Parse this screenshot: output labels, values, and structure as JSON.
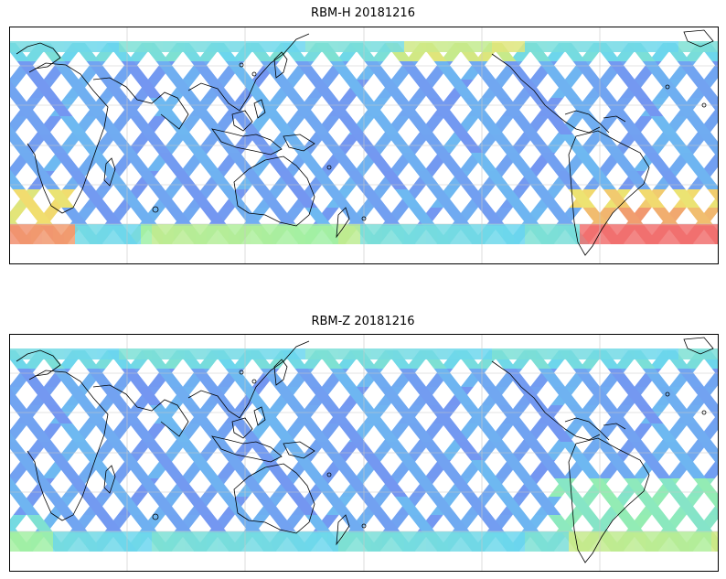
{
  "panels": [
    {
      "title": "RBM-H 20181216",
      "variable": "RBM-H",
      "date": "20181216",
      "hot_regions": [
        "south-atlantic",
        "south-africa-tip",
        "north-pacific"
      ]
    },
    {
      "title": "RBM-Z 20181216",
      "variable": "RBM-Z",
      "date": "20181216",
      "hot_regions": [
        "south-atlantic-mild"
      ]
    }
  ],
  "map": {
    "projection": "equirectangular",
    "longitude_center": 180,
    "gridlines": true,
    "coastlines": true
  },
  "colors": {
    "background": "#ffffff",
    "low": "#6a6af0",
    "low_mid": "#5ad0f0",
    "mid": "#90f0a0",
    "high_mid": "#f0e060",
    "high": "#f06060",
    "coast": "#000000",
    "grid": "#c8c8c8"
  }
}
